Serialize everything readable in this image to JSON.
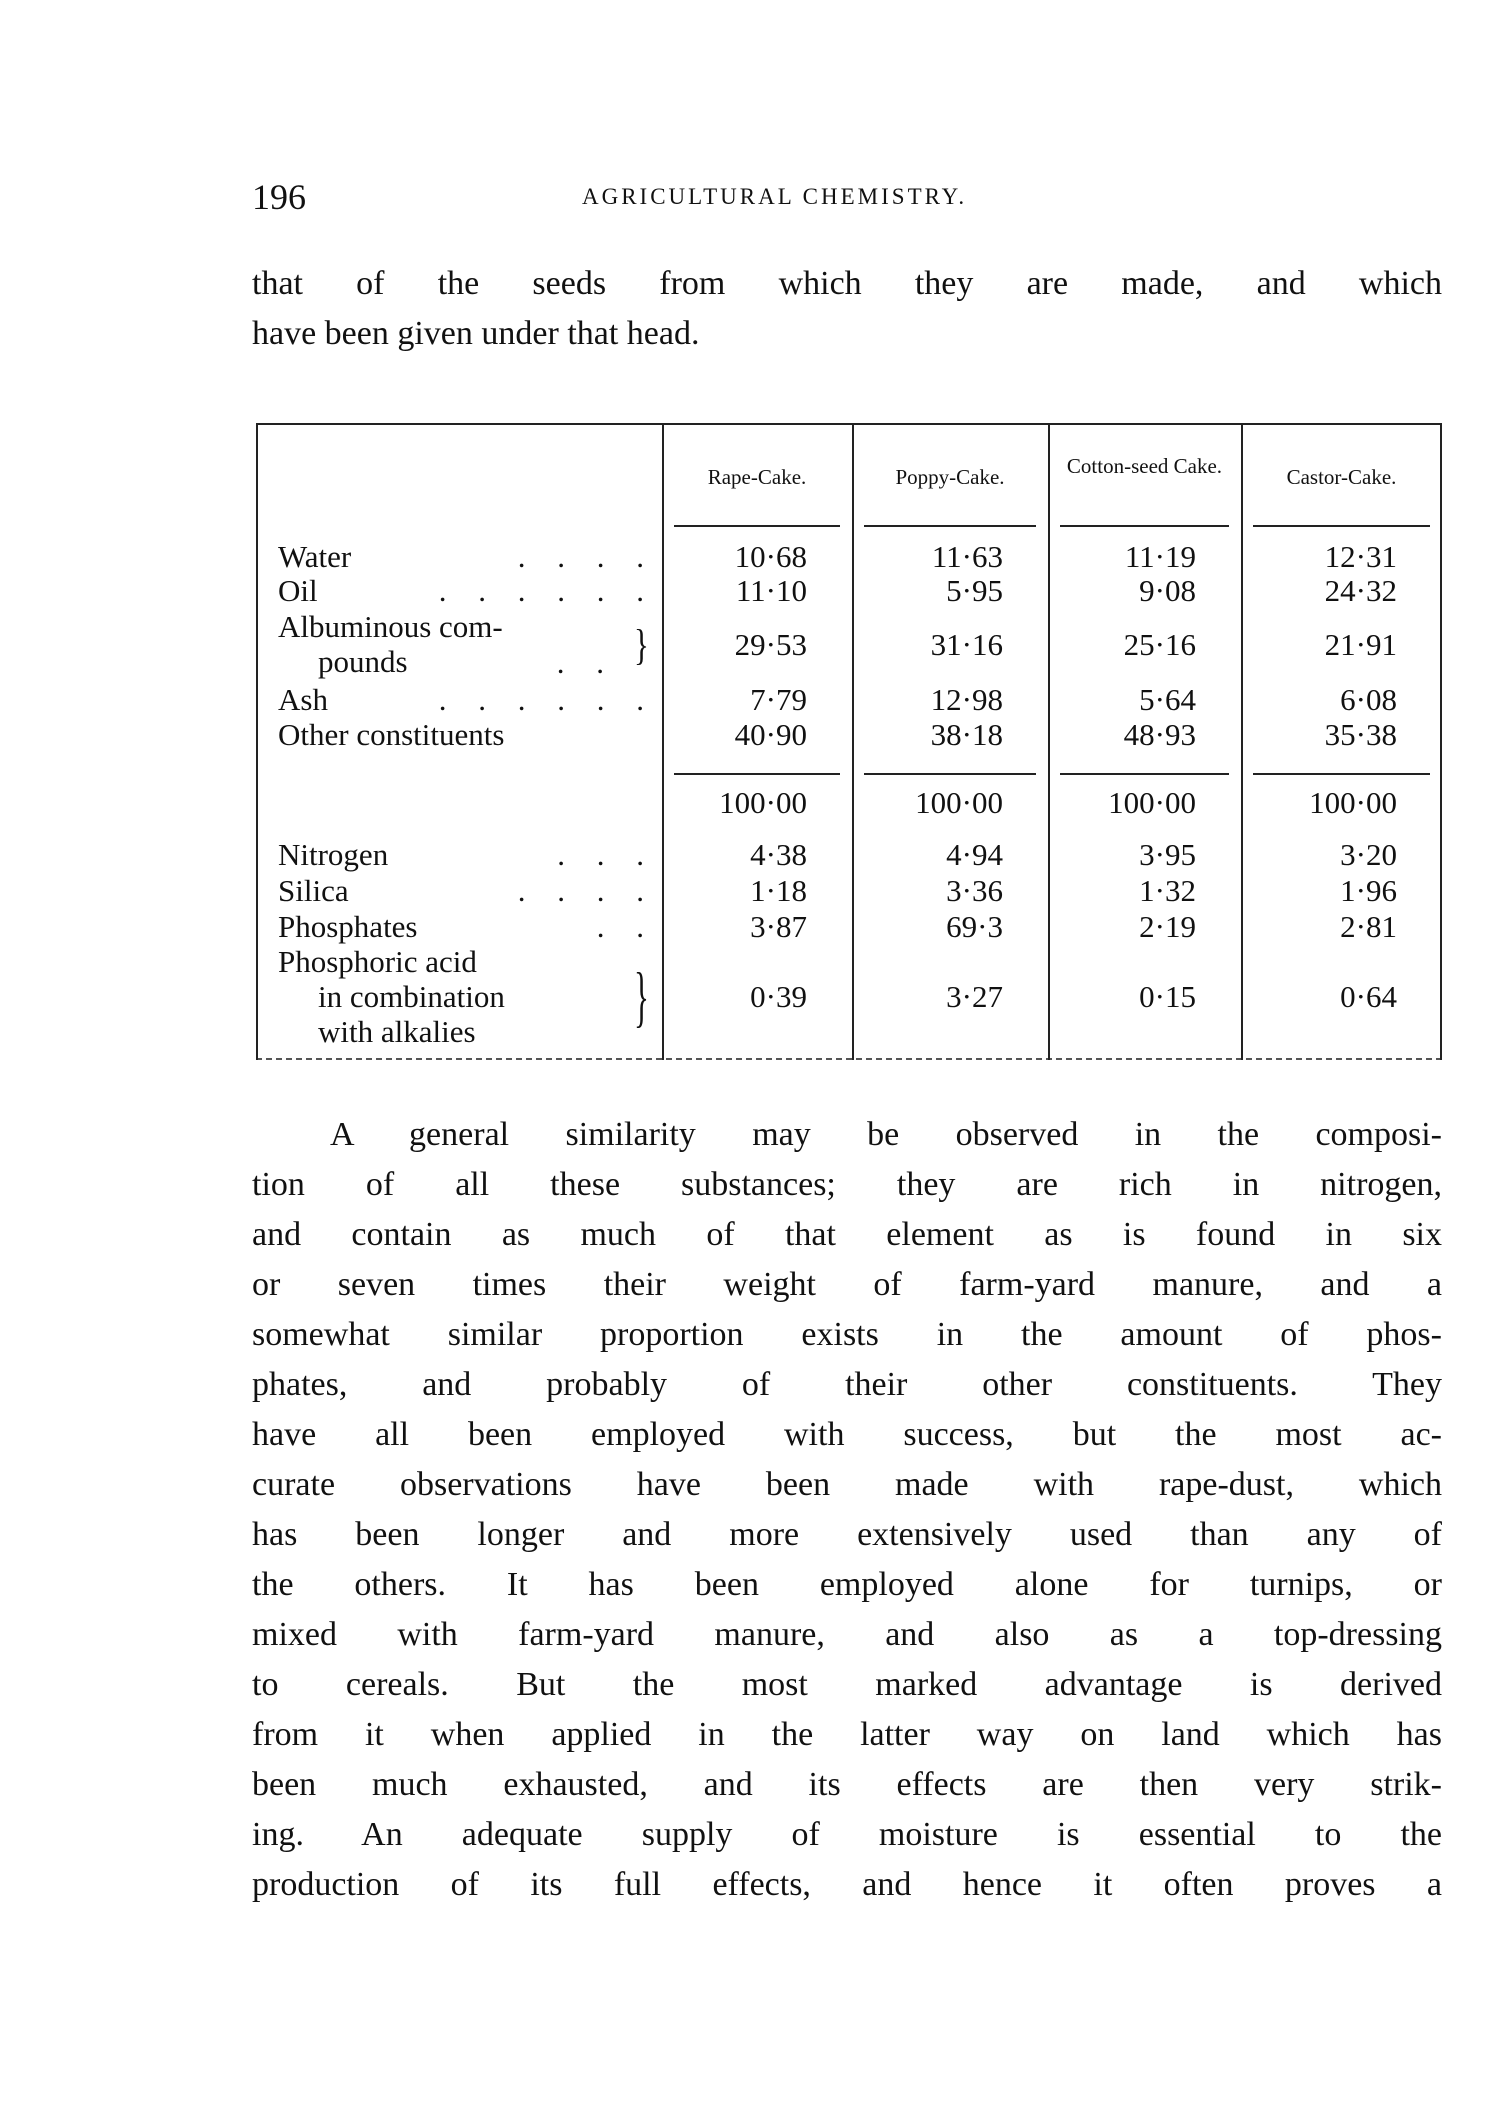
{
  "header": {
    "page_number": "196",
    "running_title": "AGRICULTURAL CHEMISTRY."
  },
  "intro_lines": [
    "that of the seeds from which they are made, and which",
    "have been given under that head."
  ],
  "table": {
    "columns": [
      "Rape-Cake.",
      "Poppy-Cake.",
      "Cotton-seed Cake.",
      "Castor-Cake."
    ],
    "rows": [
      {
        "label": [
          "Water"
        ],
        "dots": ". . . .",
        "values": [
          "10·68",
          "11·63",
          "11·19",
          "12·31"
        ]
      },
      {
        "label": [
          "Oil"
        ],
        "dots": ". . . . . .",
        "values": [
          "11·10",
          "5·95",
          "9·08",
          "24·32"
        ]
      },
      {
        "label": [
          "Albuminous com-",
          "pounds"
        ],
        "dots": ". .",
        "brace": true,
        "values": [
          "29·53",
          "31·16",
          "25·16",
          "21·91"
        ]
      },
      {
        "label": [
          "Ash"
        ],
        "dots": ". . . . . .",
        "values": [
          "7·79",
          "12·98",
          "5·64",
          "6·08"
        ]
      },
      {
        "label": [
          "Other constituents"
        ],
        "dots": "",
        "values": [
          "40·90",
          "38·18",
          "48·93",
          "35·38"
        ]
      }
    ],
    "totals": [
      "100·00",
      "100·00",
      "100·00",
      "100·00"
    ],
    "rows2": [
      {
        "label": [
          "Nitrogen"
        ],
        "dots": ". . .",
        "values": [
          "4·38",
          "4·94",
          "3·95",
          "3·20"
        ]
      },
      {
        "label": [
          "Silica"
        ],
        "dots": ". . . .",
        "values": [
          "1·18",
          "3·36",
          "1·32",
          "1·96"
        ]
      },
      {
        "label": [
          "Phosphates"
        ],
        "dots": ". .",
        "values": [
          "3·87",
          "69·3",
          "2·19",
          "2·81"
        ]
      },
      {
        "label": [
          "Phosphoric acid",
          "in combination",
          "with alkalies"
        ],
        "dots": "",
        "brace": true,
        "values": [
          "0·39",
          "3·27",
          "0·15",
          "0·64"
        ]
      }
    ]
  },
  "body_lines": [
    "A general similarity may be observed in the composi-",
    "tion of all these substances; they are rich in nitrogen,",
    "and contain as much of that element as is found in six",
    "or seven times their weight of farm-yard manure, and a",
    "somewhat similar proportion exists in the amount of phos-",
    "phates, and probably of their other constituents. They",
    "have all been employed with success, but the most ac-",
    "curate observations have been made with rape-dust, which",
    "has been longer and more extensively used than any of",
    "the others. It has been employed alone for turnips, or",
    "mixed with farm-yard manure, and also as a top-dressing",
    "to cereals. But the most marked advantage is derived",
    "from it when applied in the latter way on land which has",
    "been much exhausted, and its effects are then very strik-",
    "ing. An adequate supply of moisture is essential to the",
    "production of its full effects, and hence it often proves a"
  ]
}
